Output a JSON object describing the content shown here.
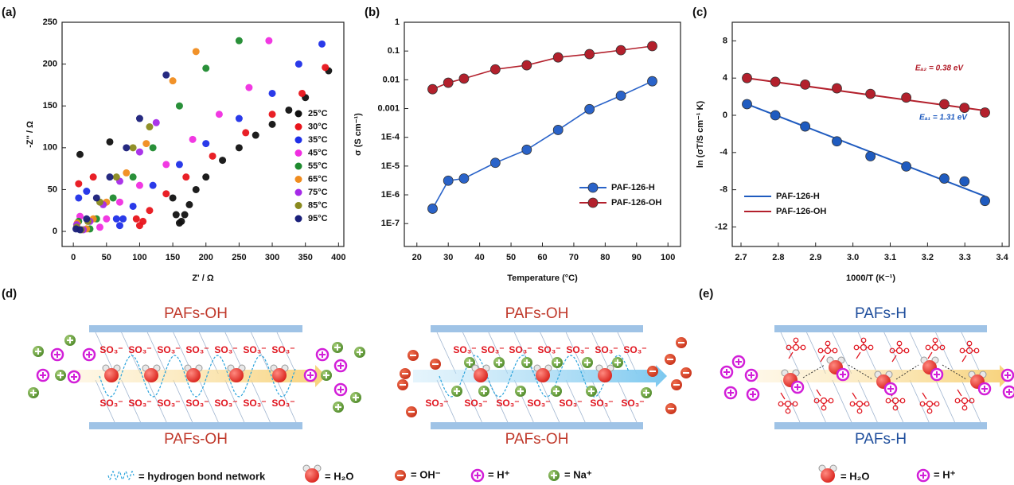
{
  "chart_data": [
    {
      "type": "scatter",
      "panel_label": "(a)",
      "x_label": "Z' / Ω",
      "y_label": "-Z'' / Ω",
      "xlim": [
        -17,
        408
      ],
      "ylim": [
        -18,
        250
      ],
      "xticks": [
        0,
        50,
        100,
        150,
        200,
        250,
        300,
        350,
        400
      ],
      "yticks": [
        0,
        50,
        100,
        150,
        200,
        250
      ],
      "series": [
        {
          "name": "25°C",
          "color": "#111111",
          "x": [
            10,
            55,
            150,
            155,
            160,
            163,
            168,
            175,
            185,
            200,
            225,
            250,
            275,
            300,
            325,
            350,
            385
          ],
          "values": [
            92,
            107,
            40,
            20,
            10,
            12,
            20,
            32,
            50,
            65,
            85,
            100,
            115,
            128,
            145,
            160,
            192
          ]
        },
        {
          "name": "30°C",
          "color": "#e8141b",
          "x": [
            8,
            30,
            95,
            100,
            105,
            115,
            140,
            170,
            210,
            260,
            300,
            345,
            380
          ],
          "values": [
            57,
            65,
            15,
            7,
            12,
            25,
            45,
            65,
            90,
            118,
            140,
            165,
            196
          ]
        },
        {
          "name": "35°C",
          "color": "#1f2fe8",
          "x": [
            8,
            20,
            65,
            70,
            75,
            90,
            120,
            160,
            200,
            250,
            300,
            340,
            375
          ],
          "values": [
            40,
            48,
            15,
            7,
            15,
            30,
            55,
            80,
            105,
            135,
            165,
            200,
            224
          ]
        },
        {
          "name": "45°C",
          "color": "#f02ee0",
          "x": [
            10,
            40,
            50,
            70,
            100,
            140,
            180,
            220,
            265,
            295
          ],
          "values": [
            18,
            5,
            15,
            35,
            55,
            80,
            110,
            140,
            172,
            228
          ]
        },
        {
          "name": "55°C",
          "color": "#1e8a2e",
          "x": [
            8,
            25,
            35,
            60,
            90,
            120,
            160,
            200,
            250
          ],
          "values": [
            12,
            3,
            15,
            40,
            65,
            100,
            150,
            195,
            228
          ]
        },
        {
          "name": "65°C",
          "color": "#f08c1e",
          "x": [
            6,
            20,
            30,
            50,
            80,
            110,
            150,
            185
          ],
          "values": [
            10,
            3,
            15,
            35,
            70,
            105,
            180,
            215
          ]
        },
        {
          "name": "75°C",
          "color": "#a52ae8",
          "x": [
            5,
            15,
            25,
            45,
            70,
            100,
            125
          ],
          "values": [
            8,
            2,
            12,
            32,
            60,
            95,
            130
          ]
        },
        {
          "name": "85°C",
          "color": "#8a8a1e",
          "x": [
            5,
            12,
            22,
            40,
            65,
            90,
            115
          ],
          "values": [
            5,
            2,
            12,
            35,
            65,
            100,
            125
          ]
        },
        {
          "name": "95°C",
          "color": "#1a1f7a",
          "x": [
            4,
            10,
            20,
            35,
            55,
            80,
            100,
            140
          ],
          "values": [
            3,
            2,
            15,
            40,
            65,
            100,
            135,
            187
          ]
        }
      ]
    },
    {
      "type": "line",
      "panel_label": "(b)",
      "x_label": "Temperature (°C)",
      "y_label": "σ (S cm⁻¹)",
      "log_y": true,
      "xlim": [
        16,
        104
      ],
      "ylim": [
        1.6e-08,
        1
      ],
      "xticks": [
        20,
        30,
        40,
        50,
        60,
        70,
        80,
        90,
        100
      ],
      "yticks": [
        1,
        0.1,
        0.01,
        0.001,
        {
          "value": 0.0001,
          "label": "1E-4"
        },
        {
          "value": 1e-05,
          "label": "1E-5"
        },
        {
          "value": 1e-06,
          "label": "1E-6"
        },
        {
          "value": 1e-07,
          "label": "1E-7"
        }
      ],
      "x": [
        25,
        30,
        35,
        45,
        55,
        65,
        75,
        85,
        95
      ],
      "series": [
        {
          "name": "PAF-126-H",
          "color": "#2a63c9",
          "values": [
            3.3e-07,
            3.1e-06,
            3.7e-06,
            1.3e-05,
            3.7e-05,
            0.00018,
            0.00095,
            0.0028,
            0.0089
          ]
        },
        {
          "name": "PAF-126-OH",
          "color": "#b3202c",
          "values": [
            0.0047,
            0.0079,
            0.011,
            0.023,
            0.032,
            0.06,
            0.078,
            0.107,
            0.148
          ]
        }
      ]
    },
    {
      "type": "arrhenius",
      "panel_label": "(c)",
      "x_label": "1000/T (K⁻¹)",
      "y_label": "ln (σT/S cm⁻¹ K)",
      "xlim": [
        2.6765,
        3.419
      ],
      "ylim": [
        -14.1,
        10
      ],
      "xticks": [
        2.7,
        2.8,
        2.9,
        {
          "value": 3,
          "label": "3.0"
        },
        3.1,
        3.2,
        3.3,
        3.4
      ],
      "yticks": [
        8,
        4,
        0,
        -4,
        -8,
        -12
      ],
      "x": [
        2.716,
        2.792,
        2.872,
        2.957,
        3.047,
        3.143,
        3.245,
        3.299,
        3.354
      ],
      "series": [
        {
          "name": "PAF-126-H",
          "color": "#1f5bbf",
          "values": [
            1.2,
            0,
            -1.2,
            -2.8,
            -4.4,
            -5.5,
            -6.8,
            -7.1,
            -9.2
          ],
          "fit": {
            "x": [
              2.716,
              3.354
            ],
            "values": [
              1.2,
              -8.7
            ]
          }
        },
        {
          "name": "PAF-126-OH",
          "color": "#b3202c",
          "values": [
            4.0,
            3.6,
            3.3,
            2.9,
            2.3,
            1.9,
            1.2,
            0.8,
            0.3
          ],
          "fit": {
            "x": [
              2.716,
              3.354
            ],
            "values": [
              4.0,
              0.5
            ]
          }
        }
      ],
      "annotations": [
        {
          "text": "Eₐ₂ = 0.38 eV",
          "color": "#b3202c"
        },
        {
          "text": "Eₐ₁ = 1.31 eV",
          "color": "#1f5bbf"
        }
      ]
    }
  ],
  "diagram": {
    "panel_labels": [
      "(d)",
      "(e)"
    ],
    "channels": [
      {
        "top": "PAFs-OH",
        "bottom": "PAFs-OH"
      },
      {
        "top": "PAFs-OH",
        "bottom": "PAFs-OH"
      },
      {
        "top": "PAFs-H",
        "bottom": "PAFs-H"
      }
    ],
    "so3": "SO₃⁻",
    "legend_d": [
      "= hydrogen bond network",
      "= H₂O",
      "= OH⁻",
      "= H⁺",
      "= Na⁺"
    ],
    "legend_e": [
      "= H₂O",
      "= H⁺"
    ]
  }
}
